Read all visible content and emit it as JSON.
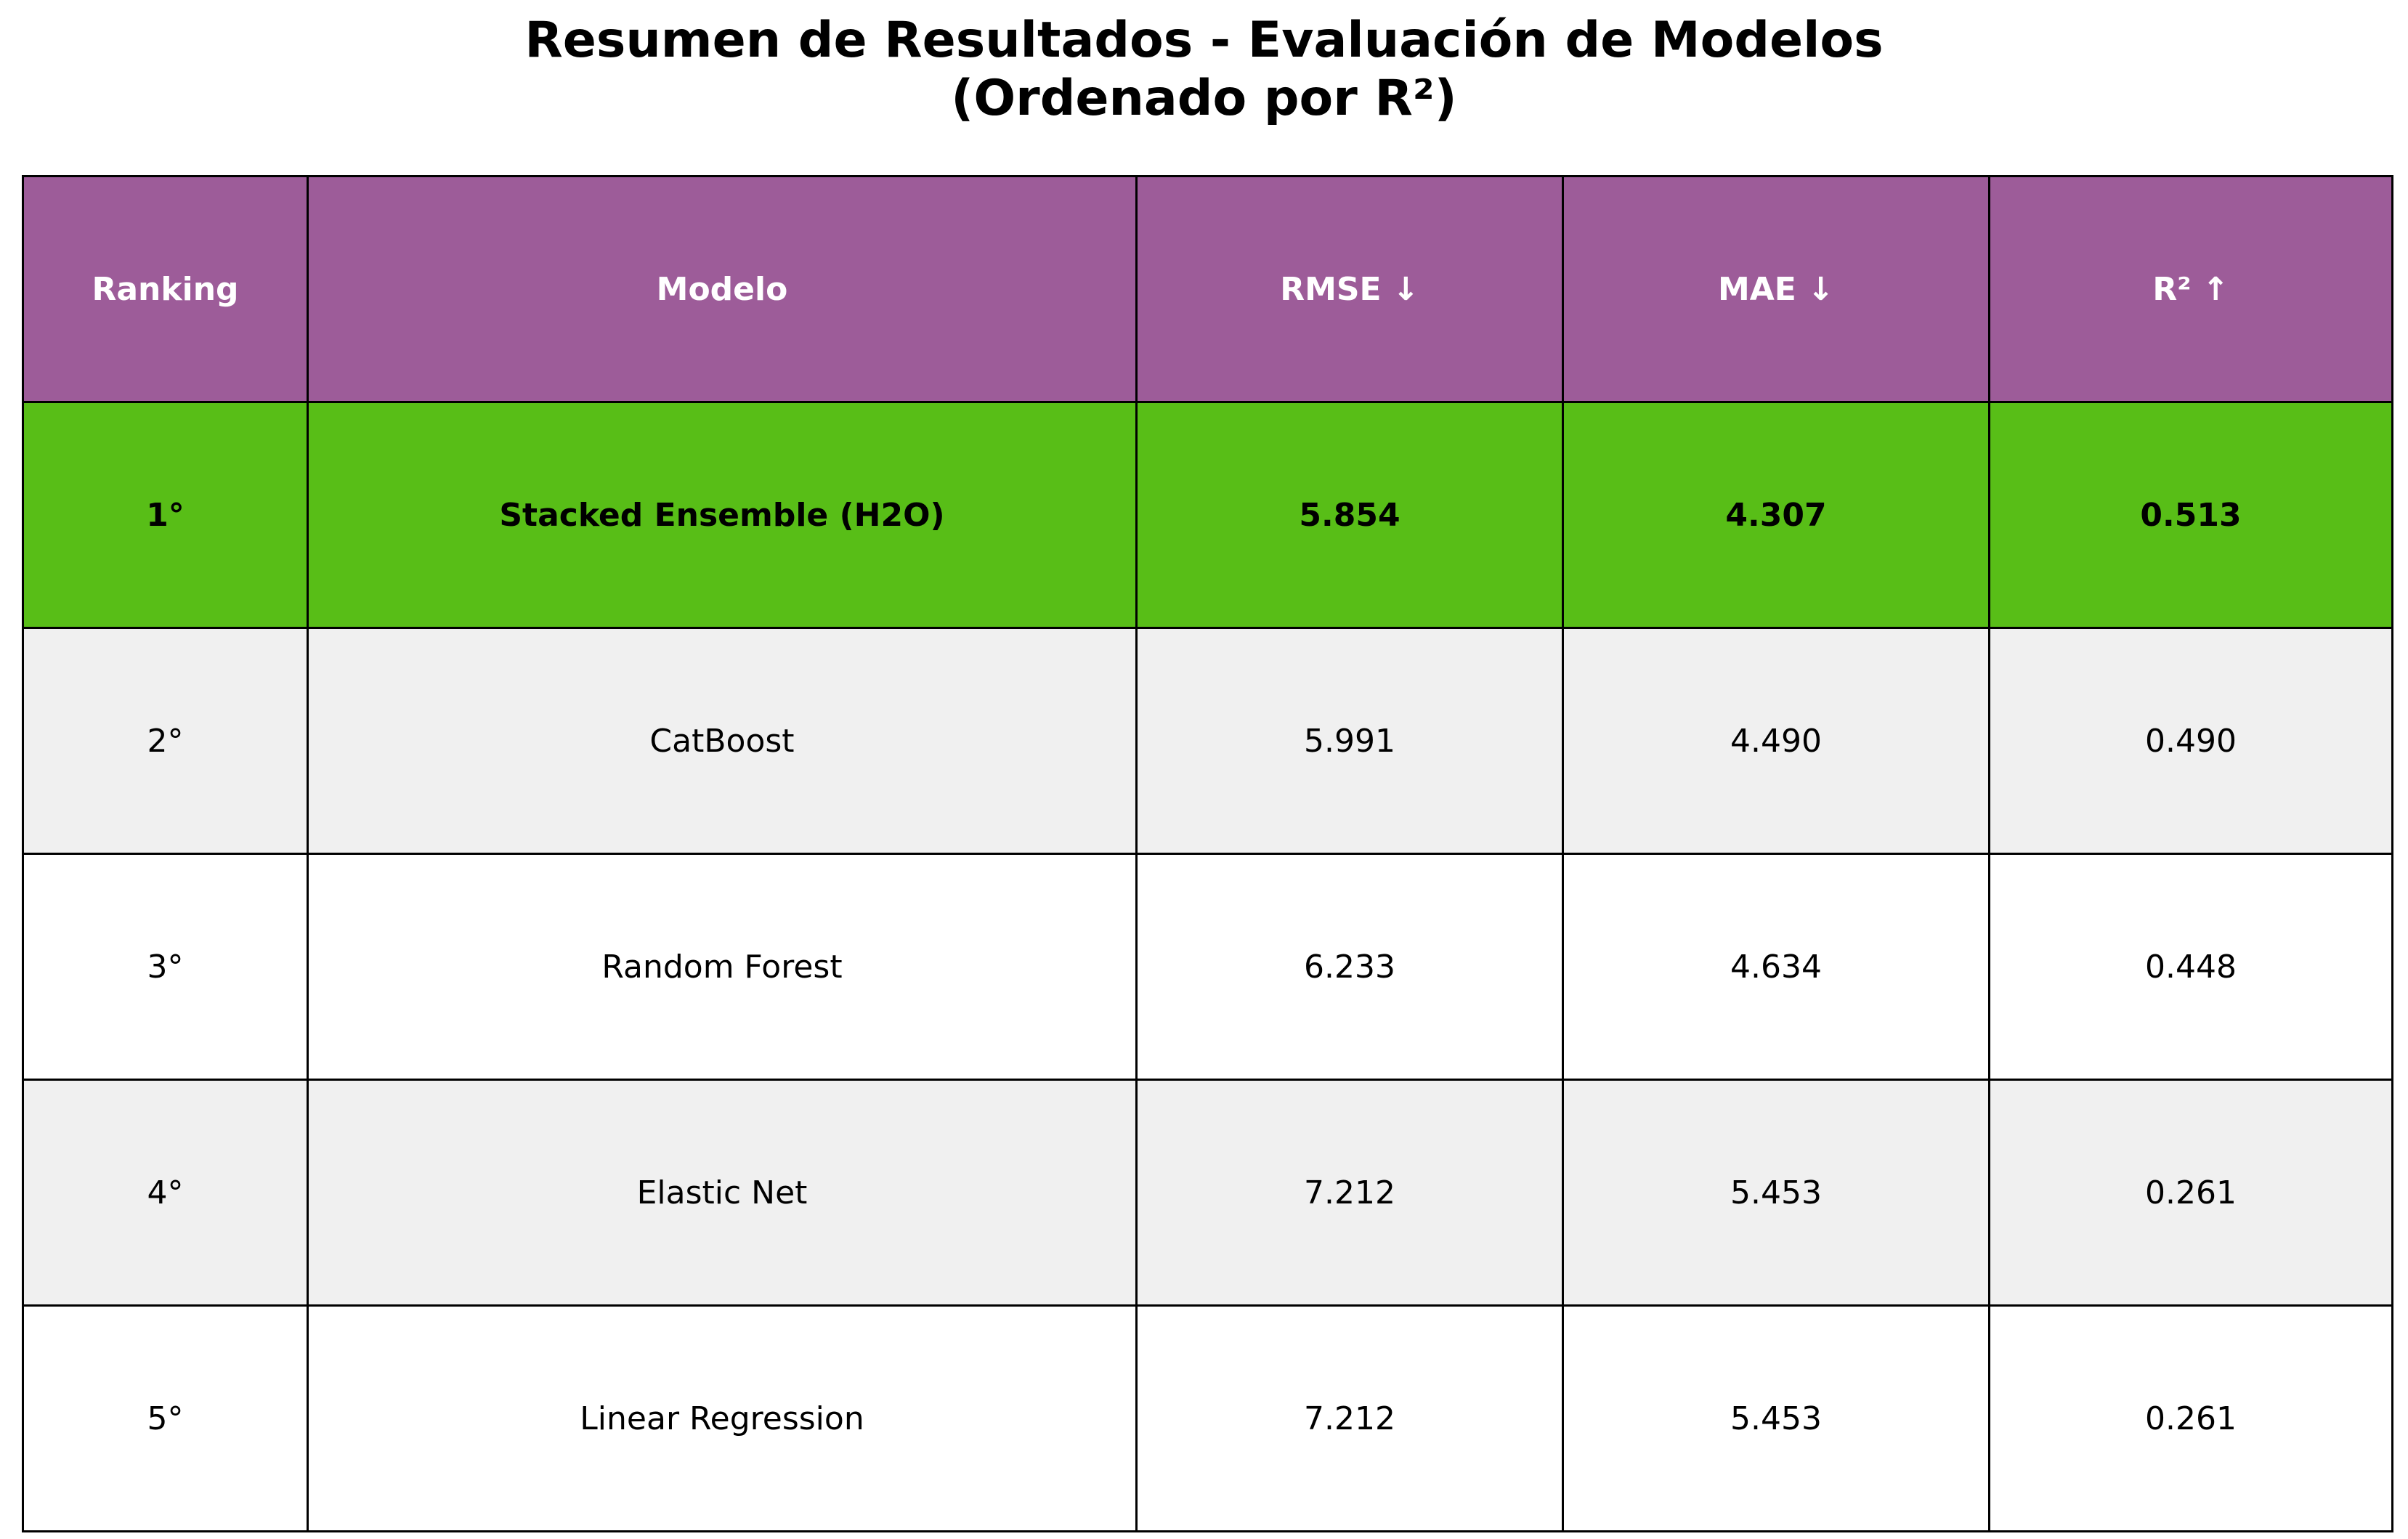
{
  "chart_data": {
    "type": "table",
    "title": "Resumen de Resultados - Evaluación de Modelos",
    "subtitle": "(Ordenado por R²)",
    "columns": [
      "Ranking",
      "Modelo",
      "RMSE ↓",
      "MAE ↓",
      "R² ↑"
    ],
    "rows": [
      [
        "1°",
        "Stacked Ensemble (H2O)",
        "5.854",
        "4.307",
        "0.513"
      ],
      [
        "2°",
        "CatBoost",
        "5.991",
        "4.490",
        "0.490"
      ],
      [
        "3°",
        "Random Forest",
        "6.233",
        "4.634",
        "0.448"
      ],
      [
        "4°",
        "Elastic Net",
        "7.212",
        "5.453",
        "0.261"
      ],
      [
        "5°",
        "Linear Regression",
        "7.212",
        "5.453",
        "0.261"
      ]
    ],
    "highlight_row": 0,
    "colors": {
      "header_bg": "#9d5c99",
      "header_text": "#ffffff",
      "highlight_bg": "#58be17",
      "row_alt_bg": "#f0f0f0",
      "row_bg": "#ffffff",
      "border": "#000000"
    }
  }
}
